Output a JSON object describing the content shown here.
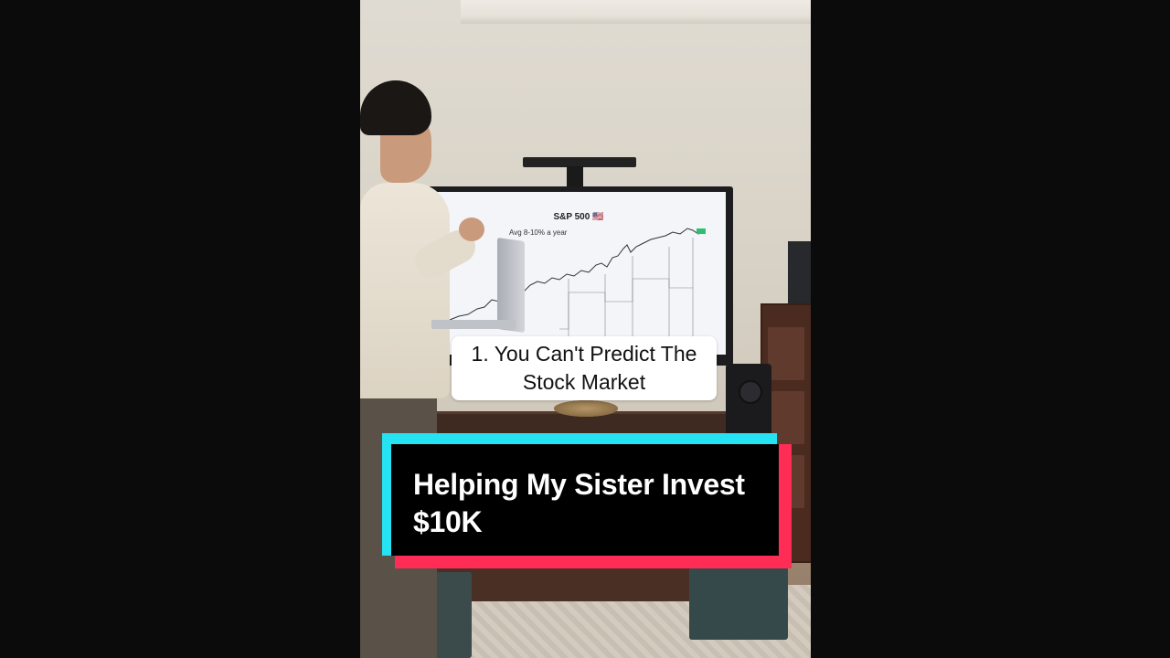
{
  "video": {
    "tv_chart": {
      "title": "S&P 500 🇺🇸",
      "note": "Avg 8-10% a year"
    },
    "subtitle": "1. You Can't Predict The\nStock Market",
    "caption": "Helping My Sister Invest $10K"
  },
  "colors": {
    "page_background": "#0b0b0b",
    "caption_cyan": "#25e3f2",
    "caption_red": "#ff2d55",
    "caption_black": "#000000",
    "subtitle_background": "#ffffff"
  }
}
